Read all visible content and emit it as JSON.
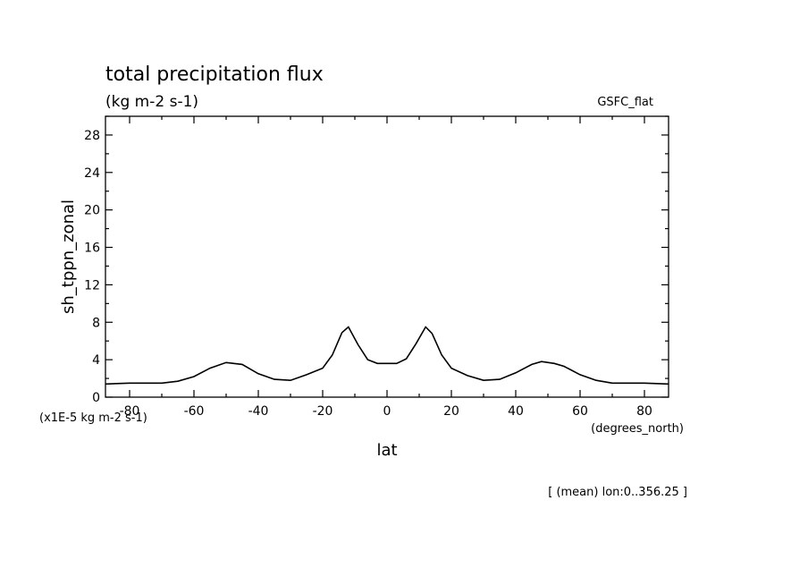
{
  "chart_data": {
    "type": "line",
    "title": "total precipitation flux",
    "subtitle": "(kg m-2 s-1)",
    "model_label": "GSFC_flat",
    "xlabel": "lat",
    "xunits": "(degrees_north)",
    "ylabel": "sh_tppn_zonal",
    "yunits": "(x1E-5 kg m-2 s-1)",
    "footnote": "[ (mean) lon:0..356.25 ]",
    "xlim": [
      -87.5,
      87.5
    ],
    "ylim": [
      0,
      30
    ],
    "xticks": [
      -80,
      -60,
      -40,
      -20,
      0,
      20,
      40,
      60,
      80
    ],
    "xtick_labels": [
      "-80",
      "-60",
      "-40",
      "-20",
      "0",
      "20",
      "40",
      "60",
      "80"
    ],
    "yticks": [
      0,
      4,
      8,
      12,
      16,
      20,
      24,
      28
    ],
    "ytick_labels": [
      "0",
      "4",
      "8",
      "12",
      "16",
      "20",
      "24",
      "28"
    ],
    "x": [
      -87.5,
      -80,
      -70,
      -65,
      -60,
      -55,
      -50,
      -45,
      -40,
      -35,
      -30,
      -25,
      -20,
      -17,
      -14,
      -12,
      -9,
      -6,
      -3,
      0,
      3,
      6,
      9,
      12,
      14,
      17,
      20,
      25,
      30,
      35,
      40,
      45,
      48,
      52,
      55,
      60,
      65,
      70,
      80,
      87.5
    ],
    "y": [
      1.4,
      1.5,
      1.5,
      1.7,
      2.2,
      3.1,
      3.7,
      3.5,
      2.5,
      1.9,
      1.8,
      2.4,
      3.1,
      4.5,
      6.9,
      7.5,
      5.6,
      4.0,
      3.6,
      3.6,
      3.6,
      4.1,
      5.7,
      7.5,
      6.8,
      4.5,
      3.1,
      2.3,
      1.8,
      1.9,
      2.6,
      3.5,
      3.8,
      3.6,
      3.3,
      2.4,
      1.8,
      1.5,
      1.5,
      1.4
    ]
  }
}
